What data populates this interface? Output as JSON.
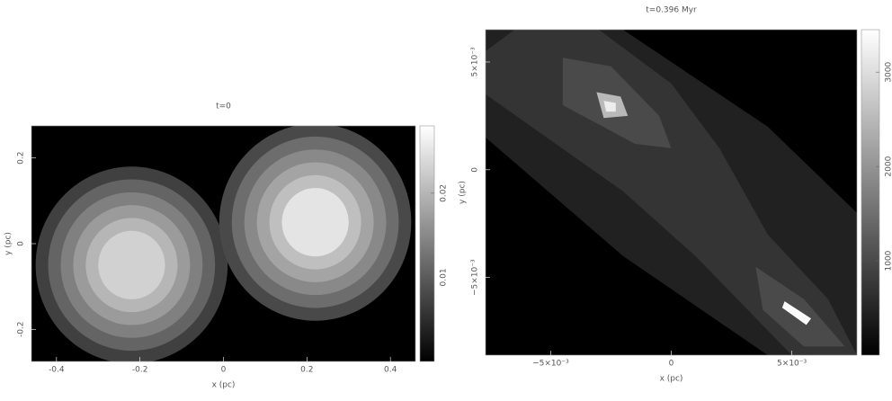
{
  "chart_data": [
    {
      "type": "contour",
      "title": "t=0",
      "xlabel": "x (pc)",
      "ylabel": "y (pc)",
      "xlim": [
        -0.46,
        0.46
      ],
      "ylim": [
        -0.275,
        0.275
      ],
      "xticks": [
        -0.4,
        -0.2,
        0,
        0.2,
        0.4
      ],
      "yticks": [
        -0.2,
        0,
        0.2
      ],
      "clim": [
        0,
        0.028
      ],
      "cticks": [
        0.01,
        0.02
      ],
      "colormap": "gray",
      "contours": [
        {
          "x": -0.22,
          "y": -0.05,
          "r": 0.23,
          "value": 0.007
        },
        {
          "x": -0.22,
          "y": -0.05,
          "r": 0.2,
          "value": 0.011
        },
        {
          "x": -0.22,
          "y": -0.05,
          "r": 0.17,
          "value": 0.014
        },
        {
          "x": -0.22,
          "y": -0.05,
          "r": 0.14,
          "value": 0.017
        },
        {
          "x": -0.22,
          "y": -0.05,
          "r": 0.11,
          "value": 0.02
        },
        {
          "x": -0.22,
          "y": -0.05,
          "r": 0.08,
          "value": 0.023
        },
        {
          "x": 0.22,
          "y": 0.05,
          "r": 0.23,
          "value": 0.008
        },
        {
          "x": 0.22,
          "y": 0.05,
          "r": 0.2,
          "value": 0.012
        },
        {
          "x": 0.22,
          "y": 0.05,
          "r": 0.17,
          "value": 0.015
        },
        {
          "x": 0.22,
          "y": 0.05,
          "r": 0.14,
          "value": 0.018
        },
        {
          "x": 0.22,
          "y": 0.05,
          "r": 0.11,
          "value": 0.021
        },
        {
          "x": 0.22,
          "y": 0.05,
          "r": 0.08,
          "value": 0.025
        }
      ]
    },
    {
      "type": "contour",
      "title": "t=0.396 Myr",
      "xlabel": "x (pc)",
      "ylabel": "y (pc)",
      "xlim": [
        -0.0077,
        0.0077
      ],
      "ylim": [
        -0.0086,
        0.0065
      ],
      "xticks": [
        {
          "value": -0.005,
          "label": "−5×10⁻³"
        },
        0,
        {
          "value": 0.005,
          "label": "5×10⁻³"
        }
      ],
      "yticks": [
        {
          "value": -0.005,
          "label": "−5×10⁻³"
        },
        0,
        {
          "value": 0.005,
          "label": "5×10⁻³"
        }
      ],
      "clim": [
        0,
        3450
      ],
      "cticks": [
        1000,
        2000,
        3000
      ],
      "colormap": "gray",
      "contours": [
        {
          "points": [
            [
              -0.0077,
              0.0065
            ],
            [
              -0.002,
              0.0065
            ],
            [
              0.004,
              0.002
            ],
            [
              0.0077,
              -0.002
            ],
            [
              0.0077,
              -0.0086
            ],
            [
              0.004,
              -0.0086
            ],
            [
              -0.002,
              -0.004
            ],
            [
              -0.0077,
              0.0015
            ]
          ],
          "value": 450
        },
        {
          "points": [
            [
              -0.0065,
              0.0065
            ],
            [
              -0.003,
              0.0065
            ],
            [
              0,
              0.004
            ],
            [
              0.002,
              0.001
            ],
            [
              0.004,
              -0.003
            ],
            [
              0.0065,
              -0.006
            ],
            [
              0.0077,
              -0.0086
            ],
            [
              0.005,
              -0.0086
            ],
            [
              0.001,
              -0.004
            ],
            [
              -0.002,
              -0.001
            ],
            [
              -0.0077,
              0.0035
            ],
            [
              -0.0077,
              0.0055
            ]
          ],
          "value": 700
        },
        {
          "points": [
            [
              -0.0045,
              0.0052
            ],
            [
              -0.0025,
              0.0048
            ],
            [
              -0.0005,
              0.0025
            ],
            [
              0,
              0.001
            ],
            [
              -0.0015,
              0.0012
            ],
            [
              -0.0045,
              0.003
            ]
          ],
          "value": 1000
        },
        {
          "points": [
            [
              0.0035,
              -0.0045
            ],
            [
              0.0055,
              -0.006
            ],
            [
              0.0072,
              -0.0082
            ],
            [
              0.0055,
              -0.0082
            ],
            [
              0.0038,
              -0.0065
            ]
          ],
          "value": 1000
        },
        {
          "points": [
            [
              -0.0031,
              0.0036
            ],
            [
              -0.0021,
              0.0034
            ],
            [
              -0.0018,
              0.0025
            ],
            [
              -0.0028,
              0.0024
            ]
          ],
          "value": 2500
        },
        {
          "points": [
            [
              -0.0028,
              0.0032
            ],
            [
              -0.0023,
              0.0031
            ],
            [
              -0.0023,
              0.0027
            ],
            [
              -0.0027,
              0.0027
            ]
          ],
          "value": 3200
        },
        {
          "points": [
            [
              0.0047,
              -0.0061
            ],
            [
              0.0058,
              -0.0069
            ],
            [
              0.0056,
              -0.0072
            ],
            [
              0.0046,
              -0.0064
            ]
          ],
          "value": 3400
        }
      ]
    }
  ]
}
